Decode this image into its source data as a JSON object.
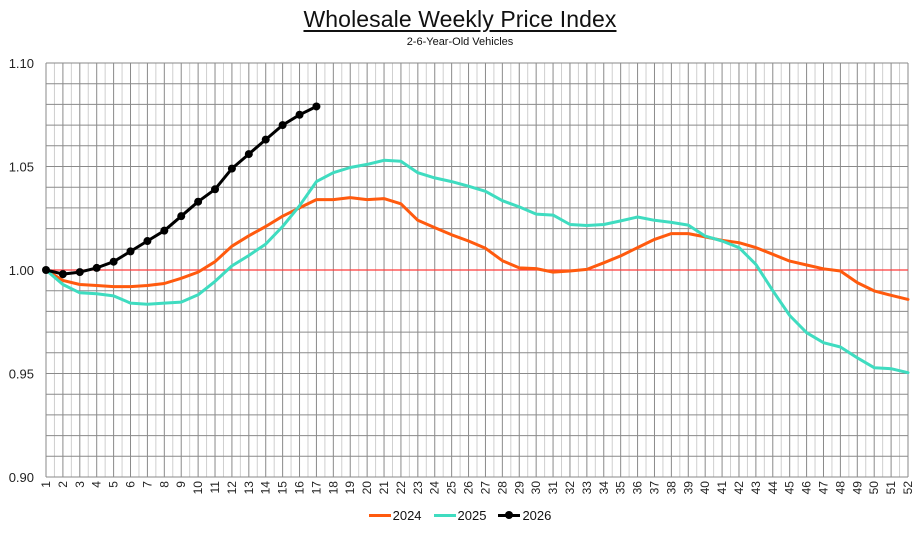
{
  "chart_data": {
    "type": "line",
    "title": "Wholesale Weekly Price Index",
    "subtitle": "2-6-Year-Old Vehicles",
    "xlabel": "",
    "ylabel": "",
    "x": [
      1,
      2,
      3,
      4,
      5,
      6,
      7,
      8,
      9,
      10,
      11,
      12,
      13,
      14,
      15,
      16,
      17,
      18,
      19,
      20,
      21,
      22,
      23,
      24,
      25,
      26,
      27,
      28,
      29,
      30,
      31,
      32,
      33,
      34,
      35,
      36,
      37,
      38,
      39,
      40,
      41,
      42,
      43,
      44,
      45,
      46,
      47,
      48,
      49,
      50,
      51,
      52
    ],
    "ylim": [
      0.9,
      1.1
    ],
    "yticks": [
      "0.90",
      "0.95",
      "1.00",
      "1.05",
      "1.10"
    ],
    "grid": true,
    "reference_line": {
      "y": 1.0,
      "color": "#ff3b3b"
    },
    "legend_position": "bottom",
    "series": [
      {
        "name": "2024",
        "color": "#ff5a0e",
        "markers": false,
        "values": [
          1.0,
          0.995,
          0.993,
          0.9925,
          0.992,
          0.992,
          0.9925,
          0.9935,
          0.996,
          0.999,
          1.004,
          1.0115,
          1.0165,
          1.021,
          1.026,
          1.03,
          1.034,
          1.034,
          1.035,
          1.034,
          1.0345,
          1.032,
          1.024,
          1.0205,
          1.017,
          1.014,
          1.0105,
          1.0045,
          1.001,
          1.0007,
          0.999,
          0.9995,
          1.0003,
          1.0035,
          1.0068,
          1.0108,
          1.0148,
          1.0176,
          1.0176,
          1.016,
          1.0143,
          1.0132,
          1.0108,
          1.0076,
          1.0043,
          1.0024,
          1.0006,
          0.9995,
          0.9939,
          0.9899,
          0.9878,
          0.9858
        ]
      },
      {
        "name": "2025",
        "color": "#3fdcc0",
        "markers": false,
        "values": [
          1.0,
          0.993,
          0.989,
          0.9885,
          0.9875,
          0.984,
          0.9835,
          0.984,
          0.9845,
          0.988,
          0.9945,
          1.002,
          1.007,
          1.0125,
          1.021,
          1.031,
          1.0427,
          1.047,
          1.0495,
          1.051,
          1.053,
          1.0525,
          1.047,
          1.0445,
          1.0427,
          1.0405,
          1.038,
          1.0335,
          1.0305,
          1.027,
          1.0265,
          1.022,
          1.0215,
          1.022,
          1.0237,
          1.0256,
          1.024,
          1.023,
          1.0217,
          1.0164,
          1.014,
          1.0108,
          1.0027,
          0.99,
          0.978,
          0.9697,
          0.9649,
          0.9628,
          0.9576,
          0.9528,
          0.9523,
          0.9504
        ]
      },
      {
        "name": "2026",
        "color": "#000000",
        "markers": true,
        "values": [
          1.0,
          0.998,
          0.999,
          1.001,
          1.004,
          1.009,
          1.014,
          1.019,
          1.026,
          1.033,
          1.039,
          1.049,
          1.056,
          1.063,
          1.07,
          1.075,
          1.079
        ]
      }
    ]
  }
}
